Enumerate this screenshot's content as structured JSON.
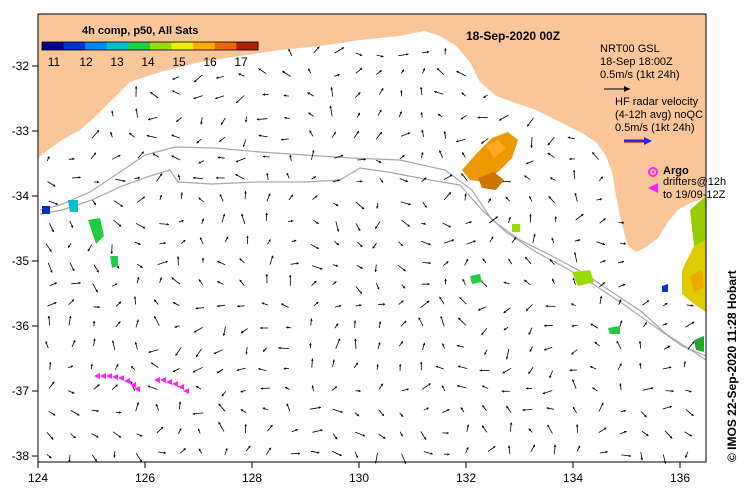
{
  "map": {
    "colorbar": {
      "title": "4h comp, p50, All Sats",
      "ticks": [
        "11",
        "12",
        "13",
        "14",
        "15",
        "16",
        "17"
      ],
      "colors": [
        "#00008b",
        "#0033cc",
        "#0088ee",
        "#00c0d0",
        "#22cc44",
        "#99dd00",
        "#eeee00",
        "#ffaa00",
        "#ee6600",
        "#aa2200"
      ]
    },
    "date_title": "18-Sep-2020 00Z",
    "legend": {
      "nrt_line1": "NRT00 GSL",
      "nrt_line2": "18-Sep 18:00Z",
      "nrt_line3": "0.5m/s (1kt 24h)",
      "hf_line1": "HF radar velocity",
      "hf_line2": "(4-12h avg) noQC",
      "hf_line3": "0.5m/s (1kt 24h)",
      "argo_label": "Argo",
      "drifters_line1": "drifters@12h",
      "drifters_line2": "to 19/09-12Z"
    },
    "side_credit": "© IMOS 22-Sep-2020 11:28 Hobart",
    "x_ticks": [
      "124",
      "126",
      "128",
      "130",
      "132",
      "134",
      "136"
    ],
    "y_ticks": [
      "-32",
      "-33",
      "-34",
      "-35",
      "-36",
      "-37",
      "-38"
    ],
    "colors": {
      "land": "#f9c69a",
      "ocean": "#ffffff",
      "hf_arrow": "#2222ee",
      "hf_arrow_edge": "#cc0000",
      "argo": "#ff22ff",
      "bathymetry": "#a8a8a8"
    }
  }
}
